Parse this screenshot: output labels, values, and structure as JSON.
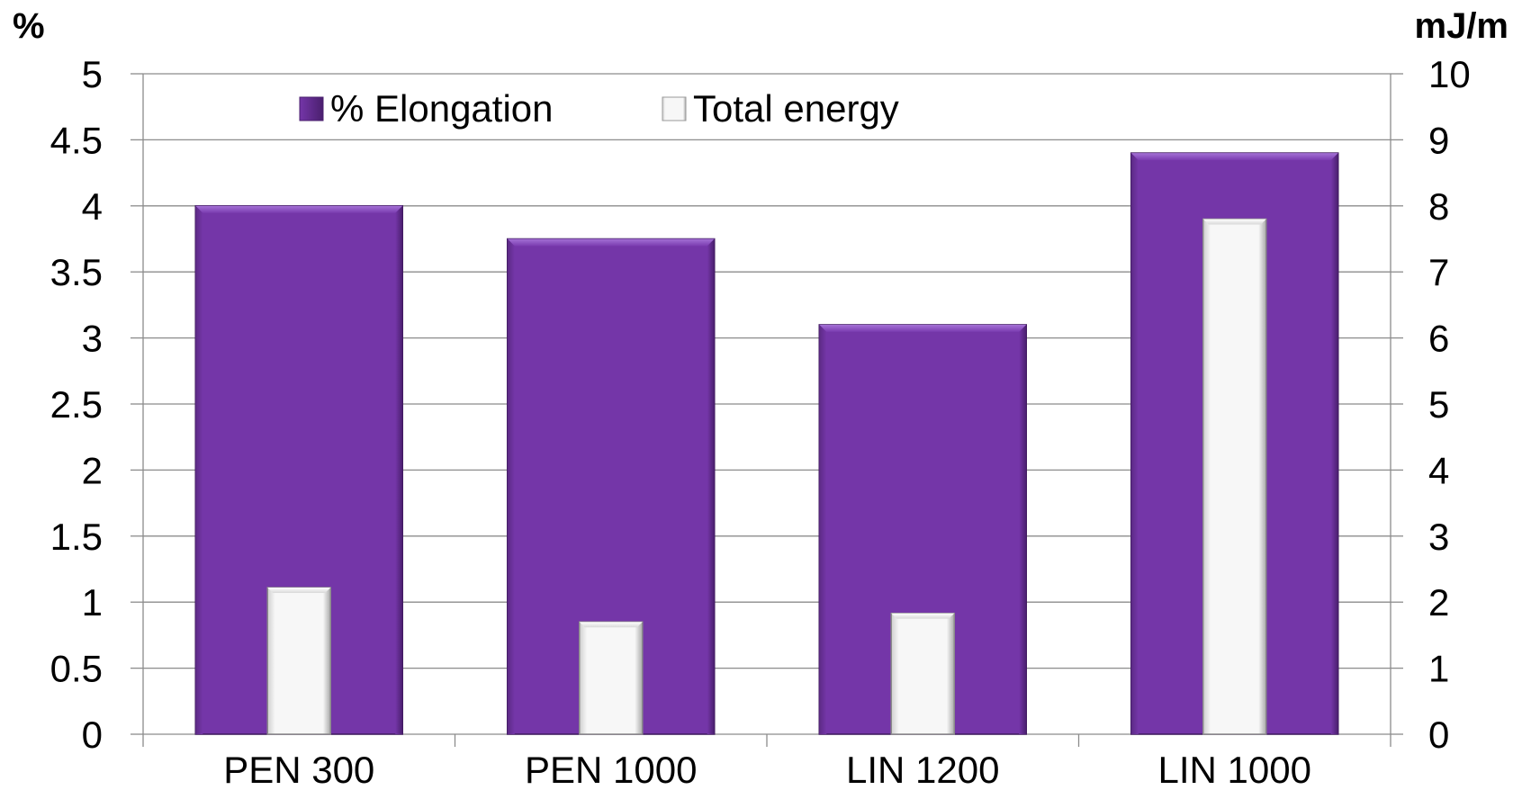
{
  "chart_data": {
    "type": "bar",
    "categories": [
      "PEN 300",
      "PEN 1000",
      "LIN 1200",
      "LIN 1000"
    ],
    "series": [
      {
        "name": "% Elongation",
        "axis": "left",
        "values": [
          4.0,
          3.75,
          3.1,
          4.4
        ],
        "color": "#7436a8"
      },
      {
        "name": "Total energy",
        "axis": "right",
        "values": [
          2.22,
          1.7,
          1.83,
          7.8
        ],
        "color": "#f2f2f2"
      }
    ],
    "ylabel": "%",
    "y2label": "mJ/m",
    "ylim": [
      0,
      5
    ],
    "y2lim": [
      0,
      10
    ],
    "yticks": [
      "0",
      "0.5",
      "1",
      "1.5",
      "2",
      "2.5",
      "3",
      "3.5",
      "4",
      "4.5",
      "5"
    ],
    "y2ticks": [
      "0",
      "1",
      "2",
      "3",
      "4",
      "5",
      "6",
      "7",
      "8",
      "9",
      "10"
    ],
    "grid": true,
    "legend_position": "top"
  }
}
